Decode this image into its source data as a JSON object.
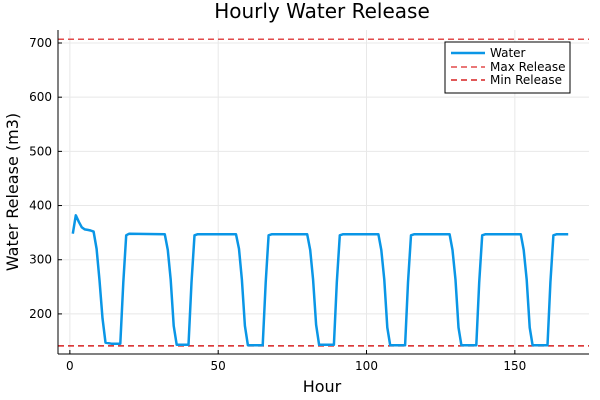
{
  "colors": {
    "water": "#0a96e6",
    "max_release": "#e24a4a",
    "min_release": "#d62020",
    "grid": "#e8e8e8",
    "axis": "#000000"
  },
  "chart_data": {
    "type": "line",
    "title": "Hourly Water Release",
    "xlabel": "Hour",
    "ylabel": "Water Release (m3)",
    "xlim": [
      -4,
      175
    ],
    "ylim": [
      126,
      724
    ],
    "xticks": [
      0,
      50,
      100,
      150
    ],
    "yticks": [
      200,
      300,
      400,
      500,
      600,
      700
    ],
    "grid": true,
    "legend_position": "top-right",
    "series": [
      {
        "name": "Water",
        "style": "solid",
        "points": [
          [
            1,
            348
          ],
          [
            2,
            382
          ],
          [
            3,
            370
          ],
          [
            4,
            360
          ],
          [
            5,
            356
          ],
          [
            6,
            355
          ],
          [
            7,
            354
          ],
          [
            8,
            352
          ],
          [
            9,
            320
          ],
          [
            10,
            262
          ],
          [
            11,
            192
          ],
          [
            12,
            147
          ],
          [
            14,
            145
          ],
          [
            16,
            145
          ],
          [
            17,
            145
          ],
          [
            18,
            258
          ],
          [
            19,
            345
          ],
          [
            20,
            348
          ],
          [
            32,
            347
          ],
          [
            33,
            318
          ],
          [
            34,
            263
          ],
          [
            35,
            178
          ],
          [
            36,
            143
          ],
          [
            40,
            143
          ],
          [
            41,
            258
          ],
          [
            42,
            345
          ],
          [
            43,
            347
          ],
          [
            56,
            347
          ],
          [
            57,
            320
          ],
          [
            58,
            263
          ],
          [
            59,
            178
          ],
          [
            60,
            142
          ],
          [
            65,
            142
          ],
          [
            66,
            258
          ],
          [
            67,
            345
          ],
          [
            68,
            347
          ],
          [
            80,
            347
          ],
          [
            81,
            318
          ],
          [
            82,
            263
          ],
          [
            83,
            180
          ],
          [
            84,
            143
          ],
          [
            89,
            143
          ],
          [
            90,
            258
          ],
          [
            91,
            345
          ],
          [
            92,
            347
          ],
          [
            104,
            347
          ],
          [
            105,
            318
          ],
          [
            106,
            263
          ],
          [
            107,
            175
          ],
          [
            108,
            142
          ],
          [
            113,
            142
          ],
          [
            114,
            258
          ],
          [
            115,
            345
          ],
          [
            116,
            347
          ],
          [
            128,
            347
          ],
          [
            129,
            318
          ],
          [
            130,
            263
          ],
          [
            131,
            175
          ],
          [
            132,
            142
          ],
          [
            137,
            142
          ],
          [
            138,
            258
          ],
          [
            139,
            345
          ],
          [
            140,
            347
          ],
          [
            152,
            347
          ],
          [
            153,
            318
          ],
          [
            154,
            263
          ],
          [
            155,
            175
          ],
          [
            156,
            142
          ],
          [
            161,
            142
          ],
          [
            162,
            258
          ],
          [
            163,
            345
          ],
          [
            164,
            347
          ],
          [
            168,
            347
          ]
        ]
      },
      {
        "name": "Max Release",
        "style": "dashed",
        "hline": 707
      },
      {
        "name": "Min Release",
        "style": "dashed",
        "hline": 141
      }
    ]
  }
}
